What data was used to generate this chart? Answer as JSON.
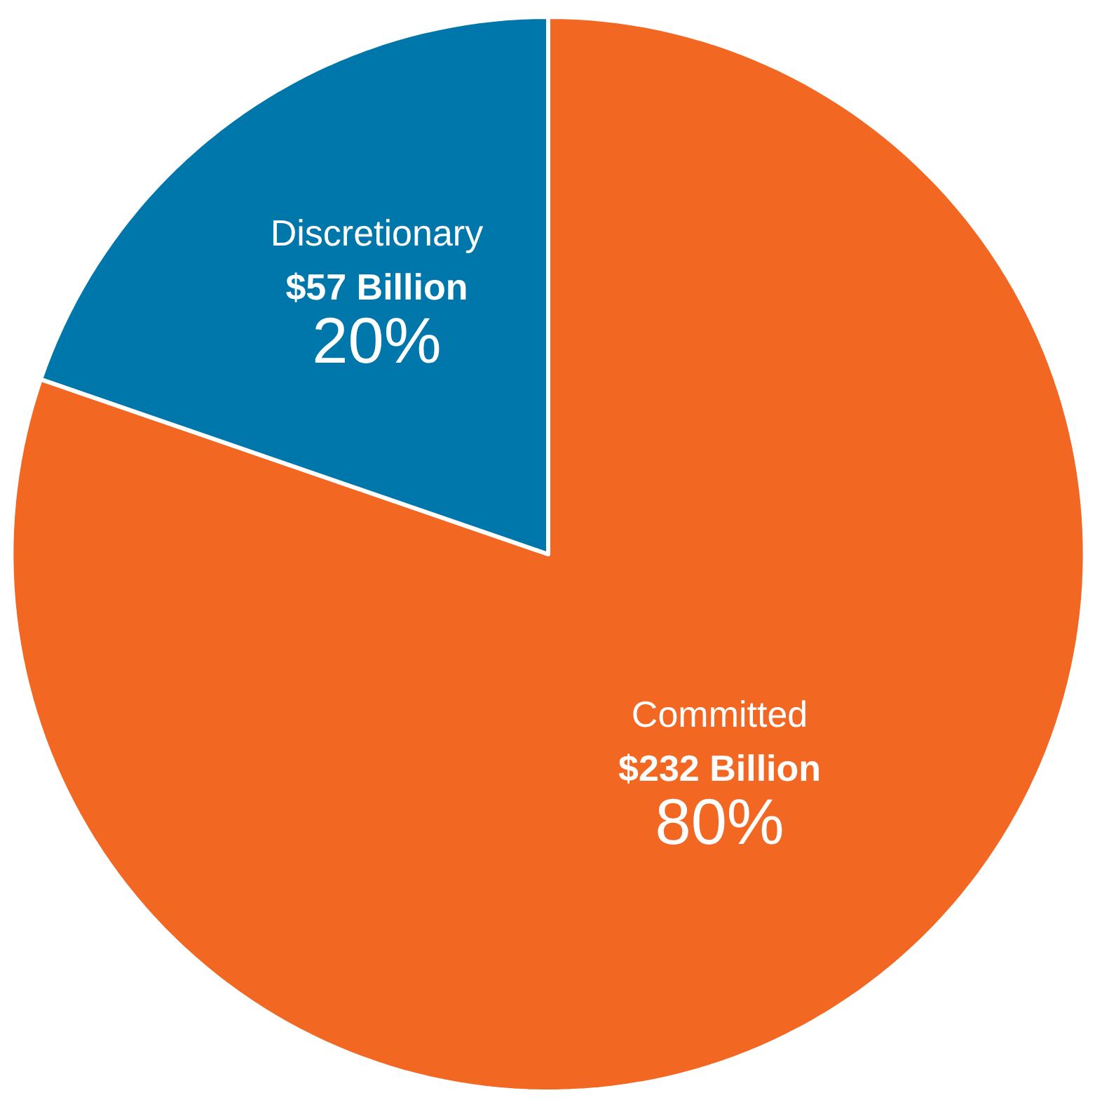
{
  "chart_data": {
    "type": "pie",
    "categories": [
      "Committed",
      "Discretionary"
    ],
    "values": [
      232,
      57
    ],
    "colors": [
      "#f26722",
      "#0077ab"
    ],
    "value_labels": [
      "$232 Billion\n80%",
      "$57 Billion\n20%"
    ]
  }
}
